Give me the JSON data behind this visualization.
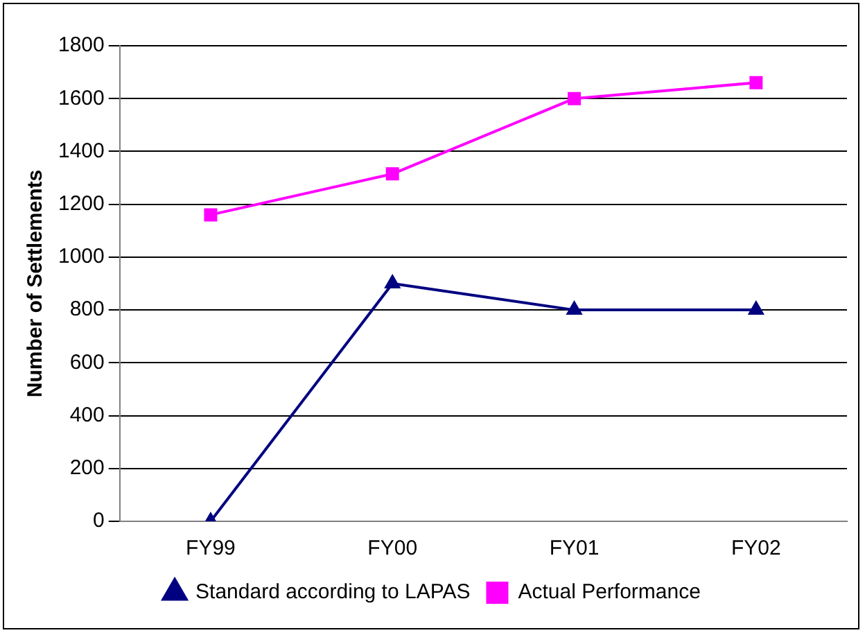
{
  "chart_data": {
    "type": "line",
    "ylabel": "Number of Settlements",
    "categories": [
      "FY99",
      "FY00",
      "FY01",
      "FY02"
    ],
    "series": [
      {
        "name": "Standard according to LAPAS",
        "color": "#000080",
        "values": [
          0,
          900,
          800,
          800
        ],
        "marker": "triangle"
      },
      {
        "name": "Actual Performance",
        "color": "#ff00ff",
        "values": [
          1160,
          1315,
          1600,
          1660
        ],
        "marker": "square"
      }
    ],
    "ylim": [
      0,
      1800
    ],
    "yticks": [
      0,
      200,
      400,
      600,
      800,
      1000,
      1200,
      1400,
      1600,
      1800
    ],
    "grid": "y",
    "legend": "bottom",
    "line_style": "solid"
  }
}
